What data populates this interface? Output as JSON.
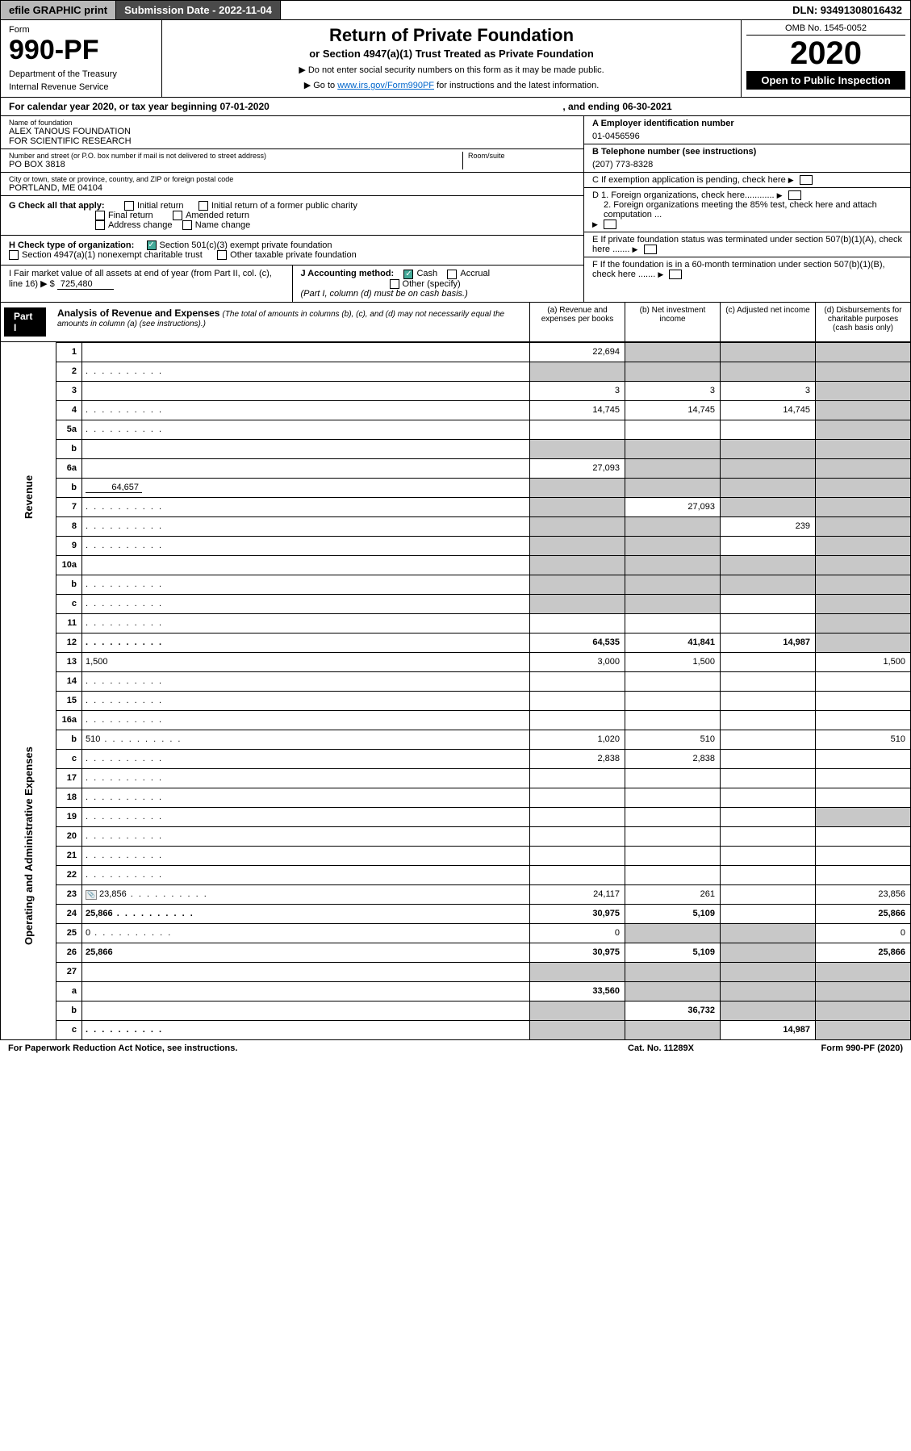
{
  "topbar": {
    "efile": "efile GRAPHIC print",
    "submission_label": "Submission Date - 2022-11-04",
    "dln": "DLN: 93491308016432"
  },
  "header": {
    "form_label": "Form",
    "form_number": "990-PF",
    "dept1": "Department of the Treasury",
    "dept2": "Internal Revenue Service",
    "title": "Return of Private Foundation",
    "subtitle": "or Section 4947(a)(1) Trust Treated as Private Foundation",
    "note1": "▶ Do not enter social security numbers on this form as it may be made public.",
    "note2_pre": "▶ Go to ",
    "note2_link": "www.irs.gov/Form990PF",
    "note2_post": " for instructions and the latest information.",
    "omb": "OMB No. 1545-0052",
    "year": "2020",
    "open": "Open to Public Inspection"
  },
  "calendar": {
    "text_left": "For calendar year 2020, or tax year beginning 07-01-2020",
    "text_right": ", and ending 06-30-2021"
  },
  "info": {
    "name_label": "Name of foundation",
    "name_val": "ALEX TANOUS FOUNDATION\nFOR SCIENTIFIC RESEARCH",
    "addr_label": "Number and street (or P.O. box number if mail is not delivered to street address)",
    "addr_val": "PO BOX 3818",
    "room_label": "Room/suite",
    "city_label": "City or town, state or province, country, and ZIP or foreign postal code",
    "city_val": "PORTLAND, ME  04104",
    "ein_label": "A Employer identification number",
    "ein_val": "01-0456596",
    "phone_label": "B Telephone number (see instructions)",
    "phone_val": "(207) 773-8328",
    "c_label": "C If exemption application is pending, check here",
    "d1_label": "D 1. Foreign organizations, check here............",
    "d2_label": "2. Foreign organizations meeting the 85% test, check here and attach computation ...",
    "e_label": "E  If private foundation status was terminated under section 507(b)(1)(A), check here .......",
    "f_label": "F  If the foundation is in a 60-month termination under section 507(b)(1)(B), check here .......",
    "g_label": "G Check all that apply:",
    "g_opts": [
      "Initial return",
      "Initial return of a former public charity",
      "Final return",
      "Amended return",
      "Address change",
      "Name change"
    ],
    "h_label": "H Check type of organization:",
    "h_opt1": "Section 501(c)(3) exempt private foundation",
    "h_opt2": "Section 4947(a)(1) nonexempt charitable trust",
    "h_opt3": "Other taxable private foundation",
    "i_label": "I Fair market value of all assets at end of year (from Part II, col. (c), line 16) ▶ $",
    "i_val": "725,480",
    "j_label": "J Accounting method:",
    "j_cash": "Cash",
    "j_accrual": "Accrual",
    "j_other": "Other (specify)",
    "j_note": "(Part I, column (d) must be on cash basis.)"
  },
  "part1": {
    "label": "Part I",
    "title": "Analysis of Revenue and Expenses",
    "note": "(The total of amounts in columns (b), (c), and (d) may not necessarily equal the amounts in column (a) (see instructions).)",
    "col_a": "(a) Revenue and expenses per books",
    "col_b": "(b) Net investment income",
    "col_c": "(c) Adjusted net income",
    "col_d": "(d) Disbursements for charitable purposes (cash basis only)",
    "side_revenue": "Revenue",
    "side_expenses": "Operating and Administrative Expenses"
  },
  "rows": [
    {
      "n": "1",
      "d": "",
      "a": "22,694",
      "b": "",
      "c": "",
      "grey_b": true,
      "grey_c": true,
      "grey_d": true
    },
    {
      "n": "2",
      "d": "",
      "a": "",
      "b": "",
      "c": "",
      "grey_a": true,
      "grey_b": true,
      "grey_c": true,
      "grey_d": true,
      "dots": true
    },
    {
      "n": "3",
      "d": "",
      "a": "3",
      "b": "3",
      "c": "3",
      "grey_d": true
    },
    {
      "n": "4",
      "d": "",
      "a": "14,745",
      "b": "14,745",
      "c": "14,745",
      "grey_d": true,
      "dots": true
    },
    {
      "n": "5a",
      "d": "",
      "a": "",
      "b": "",
      "c": "",
      "grey_d": true,
      "dots": true
    },
    {
      "n": "b",
      "d": "",
      "a": "",
      "b": "",
      "c": "",
      "grey_a": true,
      "grey_b": true,
      "grey_c": true,
      "grey_d": true,
      "inset": true
    },
    {
      "n": "6a",
      "d": "",
      "a": "27,093",
      "b": "",
      "c": "",
      "grey_b": true,
      "grey_c": true,
      "grey_d": true
    },
    {
      "n": "b",
      "d": "",
      "a": "",
      "b": "",
      "c": "",
      "grey_a": true,
      "grey_b": true,
      "grey_c": true,
      "grey_d": true,
      "inset": true,
      "inset_val": "64,657"
    },
    {
      "n": "7",
      "d": "",
      "a": "",
      "b": "27,093",
      "c": "",
      "grey_a": true,
      "grey_c": true,
      "grey_d": true,
      "dots": true
    },
    {
      "n": "8",
      "d": "",
      "a": "",
      "b": "",
      "c": "239",
      "grey_a": true,
      "grey_b": true,
      "grey_d": true,
      "dots": true
    },
    {
      "n": "9",
      "d": "",
      "a": "",
      "b": "",
      "c": "",
      "grey_a": true,
      "grey_b": true,
      "grey_d": true,
      "dots": true
    },
    {
      "n": "10a",
      "d": "",
      "a": "",
      "b": "",
      "c": "",
      "grey_a": true,
      "grey_b": true,
      "grey_c": true,
      "grey_d": true,
      "inset": true
    },
    {
      "n": "b",
      "d": "",
      "a": "",
      "b": "",
      "c": "",
      "grey_a": true,
      "grey_b": true,
      "grey_c": true,
      "grey_d": true,
      "inset": true,
      "dots": true
    },
    {
      "n": "c",
      "d": "",
      "a": "",
      "b": "",
      "c": "",
      "grey_a": true,
      "grey_b": true,
      "grey_d": true,
      "dots": true
    },
    {
      "n": "11",
      "d": "",
      "a": "",
      "b": "",
      "c": "",
      "grey_d": true,
      "dots": true
    },
    {
      "n": "12",
      "d": "",
      "a": "64,535",
      "b": "41,841",
      "c": "14,987",
      "grey_d": true,
      "bold": true,
      "dots": true
    }
  ],
  "exp_rows": [
    {
      "n": "13",
      "d": "1,500",
      "a": "3,000",
      "b": "1,500",
      "c": ""
    },
    {
      "n": "14",
      "d": "",
      "a": "",
      "b": "",
      "c": "",
      "dots": true
    },
    {
      "n": "15",
      "d": "",
      "a": "",
      "b": "",
      "c": "",
      "dots": true
    },
    {
      "n": "16a",
      "d": "",
      "a": "",
      "b": "",
      "c": "",
      "dots": true
    },
    {
      "n": "b",
      "d": "510",
      "a": "1,020",
      "b": "510",
      "c": "",
      "dots": true
    },
    {
      "n": "c",
      "d": "",
      "a": "2,838",
      "b": "2,838",
      "c": "",
      "dots": true
    },
    {
      "n": "17",
      "d": "",
      "a": "",
      "b": "",
      "c": "",
      "dots": true
    },
    {
      "n": "18",
      "d": "",
      "a": "",
      "b": "",
      "c": "",
      "dots": true
    },
    {
      "n": "19",
      "d": "",
      "a": "",
      "b": "",
      "c": "",
      "grey_d": true,
      "dots": true
    },
    {
      "n": "20",
      "d": "",
      "a": "",
      "b": "",
      "c": "",
      "dots": true
    },
    {
      "n": "21",
      "d": "",
      "a": "",
      "b": "",
      "c": "",
      "dots": true
    },
    {
      "n": "22",
      "d": "",
      "a": "",
      "b": "",
      "c": "",
      "dots": true
    },
    {
      "n": "23",
      "d": "23,856",
      "a": "24,117",
      "b": "261",
      "c": "",
      "dots": true,
      "icon": true
    },
    {
      "n": "24",
      "d": "25,866",
      "a": "30,975",
      "b": "5,109",
      "c": "",
      "bold": true,
      "dots": true
    },
    {
      "n": "25",
      "d": "0",
      "a": "0",
      "b": "",
      "c": "",
      "grey_b": true,
      "grey_c": true,
      "dots": true
    },
    {
      "n": "26",
      "d": "25,866",
      "a": "30,975",
      "b": "5,109",
      "c": "",
      "bold": true,
      "grey_c": true
    },
    {
      "n": "27",
      "d": "",
      "a": "",
      "b": "",
      "c": "",
      "grey_a": true,
      "grey_b": true,
      "grey_c": true,
      "grey_d": true
    },
    {
      "n": "a",
      "d": "",
      "a": "33,560",
      "b": "",
      "c": "",
      "bold": true,
      "grey_b": true,
      "grey_c": true,
      "grey_d": true
    },
    {
      "n": "b",
      "d": "",
      "a": "",
      "b": "36,732",
      "c": "",
      "bold": true,
      "grey_a": true,
      "grey_c": true,
      "grey_d": true
    },
    {
      "n": "c",
      "d": "",
      "a": "",
      "b": "",
      "c": "14,987",
      "bold": true,
      "grey_a": true,
      "grey_b": true,
      "grey_d": true,
      "dots": true
    }
  ],
  "footer": {
    "left": "For Paperwork Reduction Act Notice, see instructions.",
    "mid": "Cat. No. 11289X",
    "right": "Form 990-PF (2020)"
  },
  "colors": {
    "grey_bg": "#c8c8c8",
    "btn_grey": "#b8b8b8",
    "btn_dark": "#4a4a4a",
    "link": "#0066cc"
  }
}
